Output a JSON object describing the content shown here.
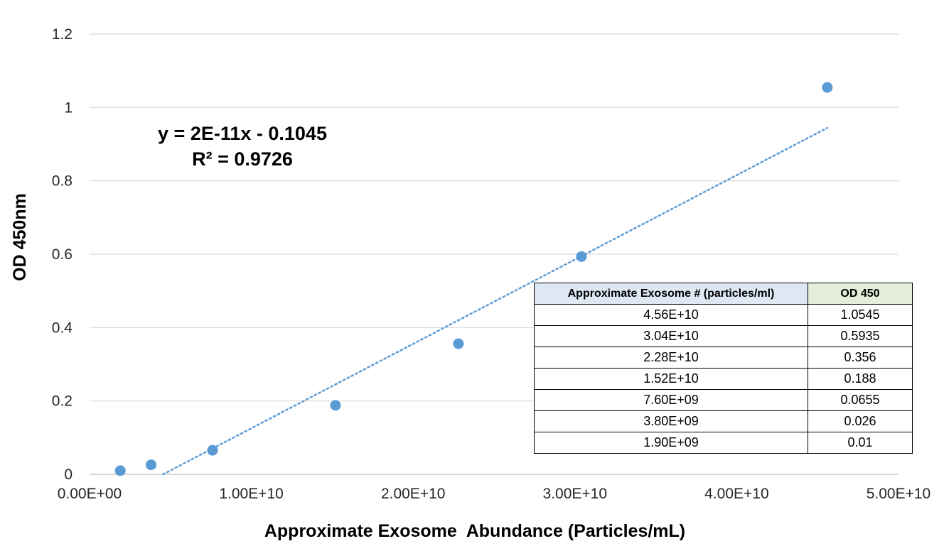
{
  "chart_data": {
    "type": "scatter",
    "xlabel": "Approximate Exosome  Abundance (Particles/mL)",
    "ylabel": "OD 450nm",
    "xlim": [
      0,
      50000000000
    ],
    "ylim": [
      0,
      1.2
    ],
    "x_ticks": [
      0,
      10000000000,
      20000000000,
      30000000000,
      40000000000,
      50000000000
    ],
    "x_tick_labels": [
      "0.00E+00",
      "1.00E+10",
      "2.00E+10",
      "3.00E+10",
      "4.00E+10",
      "5.00E+10"
    ],
    "y_ticks": [
      0,
      0.2,
      0.4,
      0.6,
      0.8,
      1,
      1.2
    ],
    "y_tick_labels": [
      "0",
      "0.2",
      "0.4",
      "0.6",
      "0.8",
      "1",
      "1.2"
    ],
    "grid": true,
    "series": [
      {
        "x": [
          1900000000,
          3800000000,
          7600000000,
          15200000000,
          22800000000,
          30400000000,
          45600000000
        ],
        "y": [
          0.01,
          0.026,
          0.0655,
          0.188,
          0.356,
          0.5935,
          1.0545
        ],
        "color": "#5b9bd5"
      }
    ],
    "trendline": {
      "type": "linear",
      "slope": 2.3e-11,
      "intercept": -0.1045,
      "x_range": [
        4543000000,
        45600000000
      ],
      "color": "#5b9bd5",
      "equation": "y = 2E-11x - 0.1045",
      "r_squared": "R² = 0.9726"
    },
    "table": {
      "headers": [
        "Approximate Exosome # (particles/ml)",
        "OD 450"
      ],
      "rows": [
        [
          "4.56E+10",
          "1.0545"
        ],
        [
          "3.04E+10",
          "0.5935"
        ],
        [
          "2.28E+10",
          "0.356"
        ],
        [
          "1.52E+10",
          "0.188"
        ],
        [
          "7.60E+09",
          "0.0655"
        ],
        [
          "3.80E+09",
          "0.026"
        ],
        [
          "1.90E+09",
          "0.01"
        ]
      ],
      "header_colors": [
        "#dde8f3",
        "#e4edd8"
      ]
    }
  }
}
